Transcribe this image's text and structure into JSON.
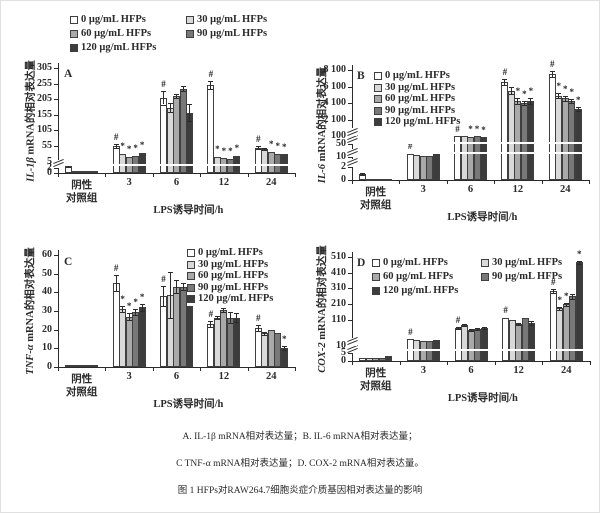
{
  "figure": {
    "captions": {
      "line1": "A. IL-1β mRNA相对表达量；B. IL-6 mRNA相对表达量；",
      "line2": "C TNF-α mRNA相对表达量；D. COX-2 mRNA相对表达量。",
      "line3": "图 1 HFPs对RAW264.7细胞炎症介质基因相对表达量的影响"
    }
  },
  "colors": {
    "bar_fills": [
      "#ffffff",
      "#d9d9d9",
      "#a9a9a9",
      "#787878",
      "#3c3c3c"
    ],
    "bar_border": "#3f3f3f",
    "axis": "#2b2b2b"
  },
  "chart_data": [
    {
      "id": "A",
      "type": "bar",
      "panel_label": "A",
      "ylabel_gene": "IL-1β",
      "ylabel_rest": " mRNA的相对表达量",
      "xlabel": "LPS诱导时间/h",
      "categories": [
        "阴性|对照组",
        "3",
        "6",
        "12",
        "24"
      ],
      "yticks": [
        {
          "label": "0",
          "value": 0,
          "pos": 0
        },
        {
          "label": "2",
          "value": 2,
          "pos": 0.05,
          "brk": true
        },
        {
          "label": "5",
          "value": 5,
          "pos": 0.109
        },
        {
          "label": "55",
          "value": 55,
          "pos": 0.257
        },
        {
          "label": "105",
          "value": 105,
          "pos": 0.406
        },
        {
          "label": "155",
          "value": 155,
          "pos": 0.554
        },
        {
          "label": "205",
          "value": 205,
          "pos": 0.703
        },
        {
          "label": "255",
          "value": 255,
          "pos": 0.851
        },
        {
          "label": "305",
          "value": 305,
          "pos": 1
        }
      ],
      "break_stripes": [
        0.08
      ],
      "series": [
        {
          "name": "0 μg/mL HFPs",
          "values": [
            3,
            55,
            210,
            250,
            50
          ],
          "err": [
            0.5,
            5,
            22,
            12,
            5
          ],
          "marks": [
            "",
            "#",
            "#",
            "#",
            "#"
          ]
        },
        {
          "name": "30 μg/mL HFPs",
          "values": [
            0.8,
            28,
            178,
            20,
            46
          ],
          "err": [
            0.2,
            3,
            15,
            3,
            4
          ],
          "marks": [
            "",
            "*",
            "",
            "*",
            ""
          ]
        },
        {
          "name": "60 μg/mL HFPs",
          "values": [
            0.8,
            20,
            215,
            15,
            36
          ],
          "err": [
            0.2,
            2,
            6,
            2,
            3
          ],
          "marks": [
            "",
            "*",
            "",
            "*",
            "*"
          ]
        },
        {
          "name": "90 μg/mL HFPs",
          "values": [
            0.8,
            23,
            238,
            13,
            29
          ],
          "err": [
            0.2,
            2,
            8,
            2,
            2
          ],
          "marks": [
            "",
            "*",
            "",
            "*",
            "*"
          ]
        },
        {
          "name": "120 μg/mL HFPs",
          "values": [
            0.8,
            32,
            162,
            24,
            28
          ],
          "err": [
            0.2,
            3,
            28,
            3,
            2
          ],
          "marks": [
            "",
            "*",
            "",
            "*",
            "*"
          ]
        }
      ]
    },
    {
      "id": "B",
      "type": "bar",
      "panel_label": "B",
      "ylabel_gene": "IL-6",
      "ylabel_rest": " mRNA的相对表达量",
      "xlabel": "LPS诱导时间/h",
      "categories": [
        "阴性|对照组",
        "3",
        "6",
        "12",
        "24"
      ],
      "yticks": [
        {
          "label": "0",
          "value": 0,
          "pos": 0
        },
        {
          "label": "2",
          "value": 2,
          "pos": 0.12,
          "brk": true
        },
        {
          "label": "10",
          "value": 10,
          "pos": 0.21,
          "brk": true
        },
        {
          "label": "50",
          "value": 50,
          "pos": 0.33,
          "brk": true
        },
        {
          "label": "100",
          "value": 100,
          "pos": 0.4,
          "brk": true
        },
        {
          "label": "2 100",
          "value": 2100,
          "pos": 0.55
        },
        {
          "label": "4 100",
          "value": 4100,
          "pos": 0.7
        },
        {
          "label": "6 100",
          "value": 6100,
          "pos": 0.85
        },
        {
          "label": "8 100",
          "value": 8100,
          "pos": 1
        }
      ],
      "break_stripes": [
        0.25,
        0.34
      ],
      "series": [
        {
          "name": "0 μg/mL HFPs",
          "values": [
            0.9,
            18,
            105,
            6600,
            7600
          ],
          "err": [
            0.2,
            3,
            5,
            350,
            400
          ],
          "marks": [
            "",
            "#",
            "#",
            "#",
            "#"
          ]
        },
        {
          "name": "30 μg/mL HFPs",
          "values": [
            0.15,
            16,
            100,
            5600,
            5000
          ],
          "err": [
            0,
            1.5,
            4,
            450,
            350
          ],
          "marks": [
            "",
            "",
            "",
            "",
            "*"
          ]
        },
        {
          "name": "60 μg/mL HFPs",
          "values": [
            0.15,
            14,
            96,
            4300,
            4700
          ],
          "err": [
            0,
            1.5,
            4,
            350,
            300
          ],
          "marks": [
            "",
            "",
            "*",
            "*",
            "*"
          ]
        },
        {
          "name": "90 μg/mL HFPs",
          "values": [
            0.15,
            14,
            100,
            4100,
            4300
          ],
          "err": [
            0,
            1.5,
            4,
            300,
            250
          ],
          "marks": [
            "",
            "",
            "*",
            "*",
            "*"
          ]
        },
        {
          "name": "120 μg/mL HFPs",
          "values": [
            0.15,
            22,
            92,
            4300,
            3400
          ],
          "err": [
            0,
            2,
            4,
            350,
            250
          ],
          "marks": [
            "",
            "",
            "*",
            "*",
            "*"
          ]
        }
      ]
    },
    {
      "id": "C",
      "type": "bar",
      "panel_label": "C",
      "ylabel_gene": "TNF-α",
      "ylabel_rest": " mRNA的相对表达量",
      "xlabel": "LPS诱导时间/h",
      "categories": [
        "阴性|对照组",
        "3",
        "6",
        "12",
        "24"
      ],
      "yticks": [
        {
          "label": "0",
          "value": 0,
          "pos": 0
        },
        {
          "label": "10",
          "value": 10,
          "pos": 0.167
        },
        {
          "label": "20",
          "value": 20,
          "pos": 0.333
        },
        {
          "label": "30",
          "value": 30,
          "pos": 0.5
        },
        {
          "label": "40",
          "value": 40,
          "pos": 0.667
        },
        {
          "label": "50",
          "value": 50,
          "pos": 0.833
        },
        {
          "label": "60",
          "value": 60,
          "pos": 1
        }
      ],
      "break_stripes": [],
      "series": [
        {
          "name": "0 μg/mL HFPs",
          "values": [
            1,
            45,
            38,
            23,
            21
          ],
          "err": [
            0.2,
            4.5,
            5.5,
            1.5,
            1.5
          ],
          "marks": [
            "",
            "#",
            "#",
            "#",
            "#"
          ]
        },
        {
          "name": "30 μg/mL HFPs",
          "values": [
            1,
            31,
            38.5,
            26.5,
            18
          ],
          "err": [
            0.2,
            1.5,
            12.5,
            0.8,
            1
          ],
          "marks": [
            "",
            "*",
            "",
            "",
            ""
          ]
        },
        {
          "name": "60 μg/mL HFPs",
          "values": [
            1,
            27,
            43,
            30.5,
            20
          ],
          "err": [
            0.2,
            1.8,
            3.5,
            1,
            0.5
          ],
          "marks": [
            "",
            "*",
            "",
            "",
            ""
          ]
        },
        {
          "name": "90 μg/mL HFPs",
          "values": [
            1,
            29.5,
            43,
            26.5,
            18
          ],
          "err": [
            0.2,
            1.5,
            2,
            3,
            0.5
          ],
          "marks": [
            "",
            "*",
            "",
            "",
            ""
          ]
        },
        {
          "name": "120 μg/mL HFPs",
          "values": [
            1,
            32,
            32.5,
            26.5,
            10
          ],
          "err": [
            0.2,
            2,
            0.5,
            2.5,
            1
          ],
          "marks": [
            "",
            "*",
            "",
            "",
            "*"
          ]
        }
      ]
    },
    {
      "id": "D",
      "type": "bar",
      "panel_label": "D",
      "ylabel_gene": "COX-2",
      "ylabel_rest": " mRNA的相对表达量",
      "xlabel": "LPS诱导时间/h",
      "categories": [
        "阴性|对照组",
        "3",
        "6",
        "12",
        "24"
      ],
      "yticks": [
        {
          "label": "0",
          "value": 0,
          "pos": 0
        },
        {
          "label": "5",
          "value": 5,
          "pos": 0.073,
          "brk": true
        },
        {
          "label": "10",
          "value": 10,
          "pos": 0.146,
          "brk": true
        },
        {
          "label": "110",
          "value": 110,
          "pos": 0.394
        },
        {
          "label": "210",
          "value": 210,
          "pos": 0.546
        },
        {
          "label": "310",
          "value": 310,
          "pos": 0.7
        },
        {
          "label": "410",
          "value": 410,
          "pos": 0.85
        },
        {
          "label": "510",
          "value": 510,
          "pos": 1
        }
      ],
      "break_stripes": [
        0.11
      ],
      "series": [
        {
          "name": "0 μg/mL HFPs",
          "values": [
            2,
            35,
            80,
            120,
            290
          ],
          "err": [
            0.3,
            2,
            4,
            6,
            12
          ],
          "marks": [
            "",
            "#",
            "#",
            "#",
            "#"
          ]
        },
        {
          "name": "30 μg/mL HFPs",
          "values": [
            2,
            33,
            90,
            112,
            185
          ],
          "err": [
            0.3,
            2,
            4,
            5,
            10
          ],
          "marks": [
            "",
            "",
            "",
            "",
            "*"
          ]
        },
        {
          "name": "60 μg/mL HFPs",
          "values": [
            2,
            30,
            70,
            95,
            210
          ],
          "err": [
            0.3,
            2,
            4,
            5,
            10
          ],
          "marks": [
            "",
            "",
            "",
            "",
            "*"
          ]
        },
        {
          "name": "90 μg/mL HFPs",
          "values": [
            2,
            30,
            75,
            125,
            260
          ],
          "err": [
            0.3,
            2,
            4,
            6,
            15
          ],
          "marks": [
            "",
            "",
            "",
            "",
            ""
          ]
        },
        {
          "name": "120 μg/mL HFPs",
          "values": [
            3,
            32,
            78,
            100,
            475
          ],
          "err": [
            0.3,
            2,
            4,
            8,
            12
          ],
          "marks": [
            "",
            "",
            "",
            "",
            "*"
          ]
        }
      ]
    }
  ]
}
